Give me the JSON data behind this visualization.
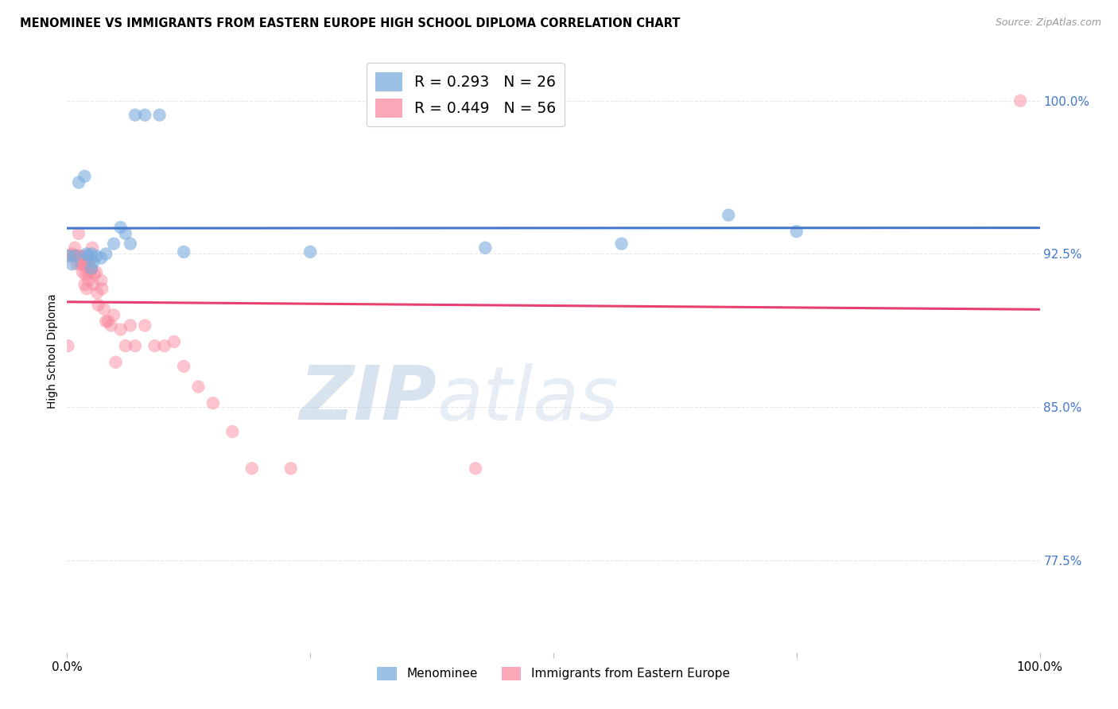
{
  "title": "MENOMINEE VS IMMIGRANTS FROM EASTERN EUROPE HIGH SCHOOL DIPLOMA CORRELATION CHART",
  "source": "Source: ZipAtlas.com",
  "ylabel": "High School Diploma",
  "xlim": [
    0,
    1
  ],
  "ylim": [
    0.73,
    1.025
  ],
  "yticks": [
    0.775,
    0.85,
    0.925,
    1.0
  ],
  "ytick_labels": [
    "77.5%",
    "85.0%",
    "92.5%",
    "100.0%"
  ],
  "xticks": [
    0,
    0.25,
    0.5,
    0.75,
    1.0
  ],
  "xtick_labels": [
    "0.0%",
    "",
    "",
    "",
    "100.0%"
  ],
  "background_color": "#ffffff",
  "grid_color": "#e0e0e0",
  "watermark_zip": "ZIP",
  "watermark_atlas": "atlas",
  "legend_blue_label": "R = 0.293   N = 26",
  "legend_pink_label": "R = 0.449   N = 56",
  "legend_menominee": "Menominee",
  "legend_eastern": "Immigrants from Eastern Europe",
  "blue_color": "#7aadde",
  "pink_color": "#f98ba0",
  "blue_line_color": "#4477cc",
  "pink_line_color": "#e84070",
  "menominee_x": [
    0.001,
    0.005,
    0.008,
    0.012,
    0.018,
    0.02,
    0.022,
    0.025,
    0.025,
    0.027,
    0.03,
    0.035,
    0.04,
    0.048,
    0.055,
    0.06,
    0.065,
    0.07,
    0.08,
    0.095,
    0.12,
    0.25,
    0.43,
    0.57,
    0.68,
    0.75
  ],
  "menominee_y": [
    0.924,
    0.92,
    0.924,
    0.96,
    0.963,
    0.925,
    0.924,
    0.925,
    0.918,
    0.921,
    0.924,
    0.923,
    0.925,
    0.93,
    0.938,
    0.935,
    0.93,
    0.993,
    0.993,
    0.993,
    0.926,
    0.926,
    0.928,
    0.93,
    0.944,
    0.936
  ],
  "eastern_x": [
    0.001,
    0.003,
    0.005,
    0.007,
    0.008,
    0.009,
    0.01,
    0.01,
    0.012,
    0.013,
    0.014,
    0.015,
    0.016,
    0.016,
    0.017,
    0.018,
    0.018,
    0.019,
    0.02,
    0.02,
    0.021,
    0.022,
    0.022,
    0.023,
    0.024,
    0.025,
    0.026,
    0.027,
    0.028,
    0.03,
    0.031,
    0.032,
    0.035,
    0.036,
    0.038,
    0.04,
    0.042,
    0.045,
    0.048,
    0.05,
    0.055,
    0.06,
    0.065,
    0.07,
    0.08,
    0.09,
    0.1,
    0.11,
    0.12,
    0.135,
    0.15,
    0.17,
    0.19,
    0.23,
    0.42,
    0.98
  ],
  "eastern_y": [
    0.88,
    0.924,
    0.925,
    0.924,
    0.928,
    0.924,
    0.92,
    0.924,
    0.935,
    0.924,
    0.92,
    0.92,
    0.916,
    0.924,
    0.92,
    0.92,
    0.91,
    0.915,
    0.908,
    0.924,
    0.92,
    0.916,
    0.912,
    0.92,
    0.916,
    0.918,
    0.928,
    0.91,
    0.915,
    0.916,
    0.906,
    0.9,
    0.912,
    0.908,
    0.898,
    0.892,
    0.892,
    0.89,
    0.895,
    0.872,
    0.888,
    0.88,
    0.89,
    0.88,
    0.89,
    0.88,
    0.88,
    0.882,
    0.87,
    0.86,
    0.852,
    0.838,
    0.82,
    0.82,
    0.82,
    1.0
  ]
}
